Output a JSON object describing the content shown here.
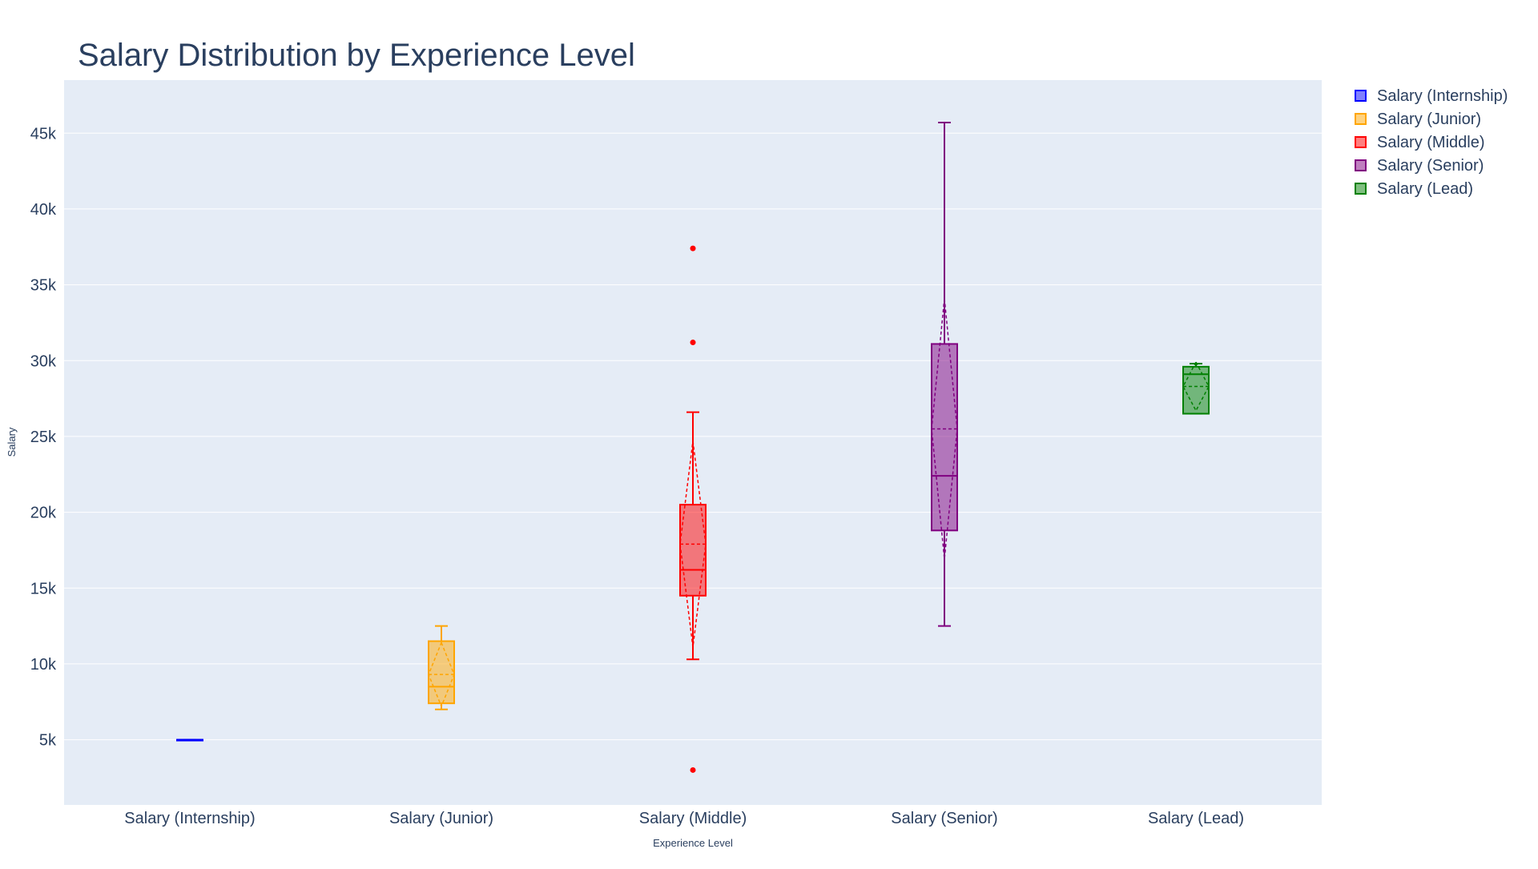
{
  "chart_data": {
    "type": "box",
    "title": "Salary Distribution by Experience Level",
    "xlabel": "Experience Level",
    "ylabel": "Salary",
    "ylim": [
      700,
      48500
    ],
    "yticks": [
      5000,
      10000,
      15000,
      20000,
      25000,
      30000,
      35000,
      40000,
      45000
    ],
    "ytick_labels": [
      "5k",
      "10k",
      "15k",
      "20k",
      "25k",
      "30k",
      "35k",
      "40k",
      "45k"
    ],
    "grid": true,
    "legend_position": "top-right",
    "categories": [
      "Salary (Internship)",
      "Salary (Junior)",
      "Salary (Middle)",
      "Salary (Senior)",
      "Salary (Lead)"
    ],
    "series": [
      {
        "name": "Salary (Internship)",
        "color": "#0000ff",
        "min": 5000,
        "q1": 5000,
        "median": 5000,
        "q3": 5000,
        "max": 5000,
        "mean": 5000,
        "sd": 0,
        "outliers": []
      },
      {
        "name": "Salary (Junior)",
        "color": "#ffa500",
        "min": 7000,
        "q1": 7400,
        "median": 8500,
        "q3": 11500,
        "max": 12500,
        "mean": 9300,
        "sd": 2100,
        "outliers": []
      },
      {
        "name": "Salary (Middle)",
        "color": "#ff0000",
        "min": 10300,
        "q1": 14500,
        "median": 16200,
        "q3": 20500,
        "max": 26600,
        "mean": 17900,
        "sd": 6800,
        "outliers": [
          37400,
          31200,
          3000
        ]
      },
      {
        "name": "Salary (Senior)",
        "color": "#800080",
        "min": 12500,
        "q1": 18800,
        "median": 22400,
        "q3": 31100,
        "max": 45700,
        "mean": 25500,
        "sd": 8600,
        "outliers": []
      },
      {
        "name": "Salary (Lead)",
        "color": "#008000",
        "min": 26500,
        "q1": 26500,
        "median": 29100,
        "q3": 29600,
        "max": 29800,
        "mean": 28300,
        "sd": 1600,
        "outliers": []
      }
    ]
  }
}
